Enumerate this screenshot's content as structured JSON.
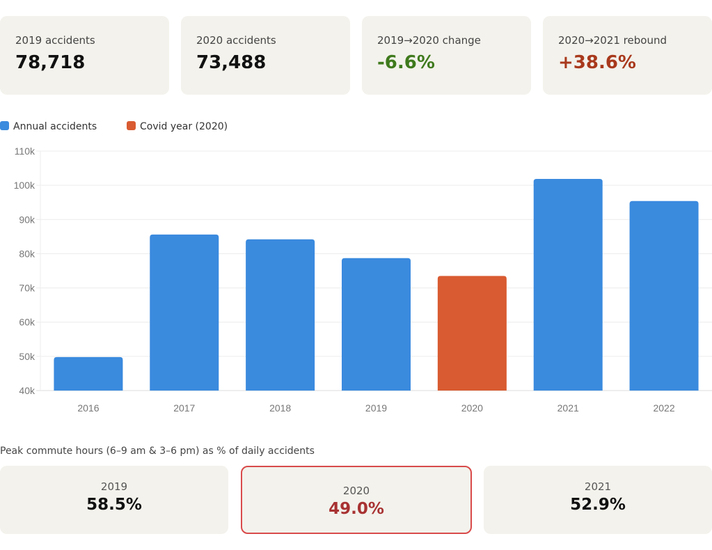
{
  "kpis": [
    {
      "label": "2019 accidents",
      "value": "78,718",
      "color": "#111111"
    },
    {
      "label": "2020 accidents",
      "value": "73,488",
      "color": "#111111"
    },
    {
      "label": "2019→2020 change",
      "value": "-6.6%",
      "color": "#3f7a1d"
    },
    {
      "label": "2020→2021 rebound",
      "value": "+38.6%",
      "color": "#a8391c"
    }
  ],
  "legend": [
    {
      "label": "Annual accidents",
      "color": "#3a8ade"
    },
    {
      "label": "Covid year (2020)",
      "color": "#d95b31"
    }
  ],
  "chart_data": {
    "type": "bar",
    "title": "",
    "xlabel": "",
    "ylabel": "",
    "categories": [
      "2016",
      "2017",
      "2018",
      "2019",
      "2020",
      "2021",
      "2022"
    ],
    "series": [
      {
        "name": "Annual accidents",
        "values": [
          49800,
          85600,
          84200,
          78718,
          73488,
          101850,
          95400
        ]
      }
    ],
    "highlight": {
      "category": "2020",
      "label": "Covid year (2020)"
    },
    "colors": {
      "default": "#3a8ade",
      "highlight": "#d95b31"
    },
    "ylim": [
      40000,
      110000
    ],
    "yticks": [
      40000,
      50000,
      60000,
      70000,
      80000,
      90000,
      100000,
      110000
    ],
    "ytick_labels": [
      "40k",
      "50k",
      "60k",
      "70k",
      "80k",
      "90k",
      "100k",
      "110k"
    ],
    "grid": true,
    "legend_position": "top-left"
  },
  "peak": {
    "caption": "Peak commute hours (6–9 am & 3–6 pm) as % of daily accidents",
    "cards": [
      {
        "year": "2019",
        "value": "58.5%",
        "color": "#111111",
        "highlight": false
      },
      {
        "year": "2020",
        "value": "49.0%",
        "color": "#a83232",
        "highlight": true
      },
      {
        "year": "2021",
        "value": "52.9%",
        "color": "#111111",
        "highlight": false
      }
    ]
  }
}
